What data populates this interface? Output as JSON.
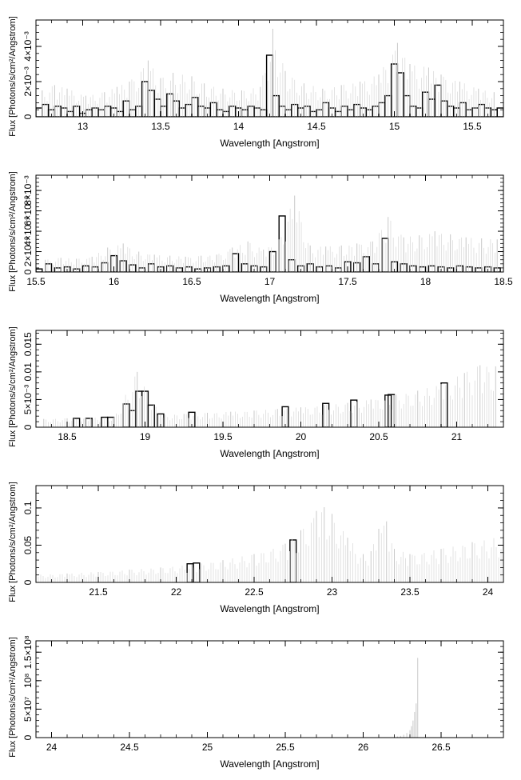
{
  "figure": {
    "xlabel": "Wavelength [Angstrom]",
    "ylabel": "Flux [Photons/s/cm²/Angstrom]"
  },
  "chart_data": [
    {
      "type": "line",
      "title": "",
      "xlabel": "Wavelength [Angstrom]",
      "ylabel": "Flux [Photons/s/cm²/Angstrom]",
      "xlim": [
        12.7,
        15.7
      ],
      "ylim": [
        0,
        0.0055
      ],
      "x_ticks": [
        13,
        13.5,
        14,
        14.5,
        15,
        15.5
      ],
      "x_tick_labels": [
        "13",
        "13.5",
        "14",
        "14.5",
        "15",
        "15.5"
      ],
      "y_ticks": [
        0,
        0.002,
        0.004
      ],
      "y_tick_labels": [
        "0",
        "2×10⁻³",
        "4×10⁻³"
      ],
      "series": [
        {
          "style": "histogram-step",
          "color": "#000000",
          "x": [
            12.72,
            12.76,
            12.8,
            12.84,
            12.88,
            12.92,
            12.96,
            13.0,
            13.04,
            13.08,
            13.12,
            13.16,
            13.2,
            13.24,
            13.28,
            13.32,
            13.36,
            13.4,
            13.44,
            13.48,
            13.52,
            13.56,
            13.6,
            13.64,
            13.68,
            13.72,
            13.76,
            13.8,
            13.84,
            13.88,
            13.92,
            13.96,
            14.0,
            14.04,
            14.08,
            14.12,
            14.16,
            14.2,
            14.24,
            14.28,
            14.32,
            14.36,
            14.4,
            14.44,
            14.48,
            14.52,
            14.56,
            14.6,
            14.64,
            14.68,
            14.72,
            14.76,
            14.8,
            14.84,
            14.88,
            14.92,
            14.96,
            15.0,
            15.04,
            15.08,
            15.12,
            15.16,
            15.2,
            15.24,
            15.28,
            15.32,
            15.36,
            15.4,
            15.44,
            15.48,
            15.52,
            15.56,
            15.6,
            15.64,
            15.68
          ],
          "y": [
            0.0005,
            0.0007,
            0.0004,
            0.0006,
            0.0005,
            0.0003,
            0.0006,
            0.0002,
            0.0004,
            0.0005,
            0.0004,
            0.0006,
            0.0005,
            0.0003,
            0.0009,
            0.0004,
            0.0006,
            0.002,
            0.0015,
            0.001,
            0.0006,
            0.0013,
            0.0009,
            0.0005,
            0.0007,
            0.0011,
            0.0006,
            0.0005,
            0.0008,
            0.0004,
            0.0003,
            0.0006,
            0.0005,
            0.0004,
            0.0006,
            0.0005,
            0.0004,
            0.0035,
            0.0012,
            0.0006,
            0.0004,
            0.0007,
            0.0005,
            0.0006,
            0.0003,
            0.0004,
            0.0008,
            0.0005,
            0.0003,
            0.0006,
            0.0004,
            0.0007,
            0.0005,
            0.0004,
            0.0006,
            0.0008,
            0.0012,
            0.003,
            0.0025,
            0.0012,
            0.0006,
            0.0005,
            0.0014,
            0.001,
            0.0018,
            0.0009,
            0.0006,
            0.0005,
            0.0008,
            0.0004,
            0.0005,
            0.0007,
            0.0005,
            0.0004,
            0.0005
          ]
        },
        {
          "style": "errorbars",
          "color": "#c8c8c8",
          "x": [
            12.74,
            12.82,
            12.9,
            13.02,
            13.14,
            13.22,
            13.3,
            13.42,
            13.5,
            13.58,
            13.7,
            13.78,
            13.9,
            14.02,
            14.14,
            14.22,
            14.3,
            14.42,
            14.54,
            14.66,
            14.78,
            14.9,
            15.02,
            15.1,
            15.22,
            15.3,
            15.42,
            15.54,
            15.64
          ],
          "y": [
            0.0015,
            0.0018,
            0.0016,
            0.0012,
            0.0014,
            0.0017,
            0.002,
            0.0032,
            0.0022,
            0.0025,
            0.0023,
            0.0019,
            0.0016,
            0.0015,
            0.0017,
            0.005,
            0.0026,
            0.0019,
            0.0016,
            0.0018,
            0.002,
            0.0024,
            0.0042,
            0.003,
            0.0028,
            0.0024,
            0.002,
            0.0016,
            0.0014
          ]
        }
      ]
    },
    {
      "type": "line",
      "title": "",
      "xlabel": "Wavelength [Angstrom]",
      "ylabel": "Flux [Photons/s/cm²/Angstrom]",
      "xlim": [
        15.5,
        18.5
      ],
      "ylim": [
        0,
        0.0095
      ],
      "x_ticks": [
        15.5,
        16,
        16.5,
        17,
        17.5,
        18,
        18.5
      ],
      "x_tick_labels": [
        "15.5",
        "16",
        "16.5",
        "17",
        "17.5",
        "18",
        "18.5"
      ],
      "y_ticks": [
        0,
        0.002,
        0.004,
        0.006,
        0.008
      ],
      "y_tick_labels": [
        "0",
        "2×10⁻³",
        "4×10⁻³",
        "6×10⁻³",
        "8×10⁻³"
      ],
      "series": [
        {
          "style": "histogram-step",
          "color": "#000000",
          "x": [
            15.52,
            15.58,
            15.64,
            15.7,
            15.76,
            15.82,
            15.88,
            15.94,
            16.0,
            16.06,
            16.12,
            16.18,
            16.24,
            16.3,
            16.36,
            16.42,
            16.48,
            16.54,
            16.6,
            16.66,
            16.72,
            16.78,
            16.84,
            16.9,
            16.96,
            17.02,
            17.08,
            17.14,
            17.2,
            17.26,
            17.32,
            17.38,
            17.44,
            17.5,
            17.56,
            17.62,
            17.68,
            17.74,
            17.8,
            17.86,
            17.92,
            17.98,
            18.04,
            18.1,
            18.16,
            18.22,
            18.28,
            18.34,
            18.4,
            18.46
          ],
          "y": [
            0.0003,
            0.0008,
            0.0004,
            0.0005,
            0.0003,
            0.0006,
            0.0005,
            0.0009,
            0.0016,
            0.0011,
            0.0007,
            0.0004,
            0.0008,
            0.0005,
            0.0006,
            0.0004,
            0.0005,
            0.0003,
            0.0004,
            0.0005,
            0.0006,
            0.0018,
            0.0008,
            0.0006,
            0.0005,
            0.002,
            0.0055,
            0.0012,
            0.0006,
            0.0008,
            0.0005,
            0.0006,
            0.0004,
            0.001,
            0.0009,
            0.0015,
            0.0008,
            0.0033,
            0.001,
            0.0008,
            0.0006,
            0.0005,
            0.0006,
            0.0005,
            0.0004,
            0.0006,
            0.0005,
            0.0004,
            0.0005,
            0.0004
          ]
        },
        {
          "style": "errorbars",
          "color": "#c8c8c8",
          "x": [
            15.56,
            15.66,
            15.76,
            15.86,
            15.96,
            16.06,
            16.16,
            16.26,
            16.36,
            16.46,
            16.56,
            16.66,
            16.76,
            16.86,
            16.96,
            17.06,
            17.16,
            17.26,
            17.36,
            17.46,
            17.56,
            17.66,
            17.76,
            17.86,
            17.96,
            18.06,
            18.16,
            18.26,
            18.36,
            18.46
          ],
          "y": [
            0.0012,
            0.0014,
            0.0013,
            0.0015,
            0.0024,
            0.0028,
            0.002,
            0.0017,
            0.0016,
            0.0015,
            0.0016,
            0.0017,
            0.0024,
            0.003,
            0.0022,
            0.0032,
            0.0075,
            0.0026,
            0.0025,
            0.0026,
            0.0028,
            0.003,
            0.0054,
            0.0034,
            0.0036,
            0.004,
            0.0037,
            0.0034,
            0.0033,
            0.0032
          ]
        }
      ]
    },
    {
      "type": "line",
      "title": "",
      "xlabel": "Wavelength [Angstrom]",
      "ylabel": "Flux [Photons/s/cm²/Angstrom]",
      "xlim": [
        18.3,
        21.3
      ],
      "ylim": [
        0,
        0.0175
      ],
      "x_ticks": [
        18.5,
        19,
        19.5,
        20,
        20.5,
        21
      ],
      "x_tick_labels": [
        "18.5",
        "19",
        "19.5",
        "20",
        "20.5",
        "21"
      ],
      "y_ticks": [
        0,
        0.005,
        0.01,
        0.015
      ],
      "y_tick_labels": [
        "0",
        "5×10⁻³",
        "0.01",
        "0.015"
      ],
      "series": [
        {
          "style": "histogram-step",
          "color": "#000000",
          "x": [
            18.56,
            18.64,
            18.74,
            18.78,
            18.88,
            18.92,
            18.96,
            19.0,
            19.04,
            19.1,
            19.3,
            19.9,
            20.16,
            20.34,
            20.56,
            20.58,
            20.92
          ],
          "y": [
            0.0016,
            0.0016,
            0.0018,
            0.0018,
            0.0042,
            0.003,
            0.0065,
            0.0065,
            0.004,
            0.0024,
            0.0027,
            0.0037,
            0.0043,
            0.0049,
            0.0058,
            0.0059,
            0.008
          ]
        },
        {
          "style": "errorbars",
          "color": "#c8c8c8",
          "x": [
            18.35,
            18.5,
            18.65,
            18.8,
            18.95,
            19.1,
            19.25,
            19.4,
            19.55,
            19.7,
            19.85,
            20.0,
            20.15,
            20.3,
            20.45,
            20.6,
            20.75,
            20.9,
            21.05,
            21.15,
            21.25
          ],
          "y": [
            0.0015,
            0.0016,
            0.0017,
            0.0018,
            0.01,
            0.0022,
            0.0024,
            0.0026,
            0.0028,
            0.003,
            0.0033,
            0.0036,
            0.004,
            0.0044,
            0.005,
            0.0058,
            0.0066,
            0.0078,
            0.0098,
            0.0112,
            0.011
          ]
        }
      ]
    },
    {
      "type": "line",
      "title": "",
      "xlabel": "Wavelength [Angstrom]",
      "ylabel": "Flux [Photons/s/cm²/Angstrom]",
      "xlim": [
        21.1,
        24.1
      ],
      "ylim": [
        0,
        0.13
      ],
      "x_ticks": [
        21.5,
        22,
        22.5,
        23,
        23.5,
        24
      ],
      "x_tick_labels": [
        "21.5",
        "22",
        "22.5",
        "23",
        "23.5",
        "24"
      ],
      "y_ticks": [
        0,
        0.05,
        0.1
      ],
      "y_tick_labels": [
        "0",
        "0.05",
        "0.1"
      ],
      "series": [
        {
          "style": "histogram-step",
          "color": "#000000",
          "x": [
            22.09,
            22.13,
            22.75
          ],
          "y": [
            0.025,
            0.026,
            0.057
          ]
        },
        {
          "style": "errorbars",
          "color": "#c8c8c8",
          "x": [
            21.1,
            21.3,
            21.5,
            21.7,
            21.9,
            22.1,
            22.3,
            22.5,
            22.7,
            22.8,
            22.9,
            22.95,
            23.0,
            23.1,
            23.2,
            23.25,
            23.3,
            23.35,
            23.4,
            23.5,
            23.7,
            23.9,
            24.1
          ],
          "y": [
            0.01,
            0.012,
            0.014,
            0.017,
            0.02,
            0.024,
            0.03,
            0.038,
            0.052,
            0.07,
            0.096,
            0.101,
            0.092,
            0.06,
            0.038,
            0.042,
            0.072,
            0.082,
            0.045,
            0.038,
            0.045,
            0.054,
            0.062
          ]
        }
      ]
    },
    {
      "type": "line",
      "title": "",
      "xlabel": "Wavelength [Angstrom]",
      "ylabel": "Flux [Photons/s/cm²/Angstrom]",
      "xlim": [
        23.9,
        26.9
      ],
      "ylim": [
        0,
        170000000
      ],
      "x_ticks": [
        24,
        24.5,
        25,
        25.5,
        26,
        26.5
      ],
      "x_tick_labels": [
        "24",
        "24.5",
        "25",
        "25.5",
        "26",
        "26.5"
      ],
      "y_ticks": [
        0,
        50000000,
        100000000,
        150000000
      ],
      "y_tick_labels": [
        "0",
        "5×10⁷",
        "10⁸",
        "1.5×10⁸"
      ],
      "series": [
        {
          "style": "errorbars",
          "color": "#c8c8c8",
          "x": [
            26.2,
            26.22,
            26.24,
            26.26,
            26.28,
            26.3,
            26.31,
            26.32,
            26.33,
            26.34,
            26.35
          ],
          "y": [
            1000000,
            2000000,
            3000000,
            5000000,
            8000000,
            13000000,
            20000000,
            30000000,
            45000000,
            60000000,
            140000000
          ]
        }
      ]
    }
  ]
}
